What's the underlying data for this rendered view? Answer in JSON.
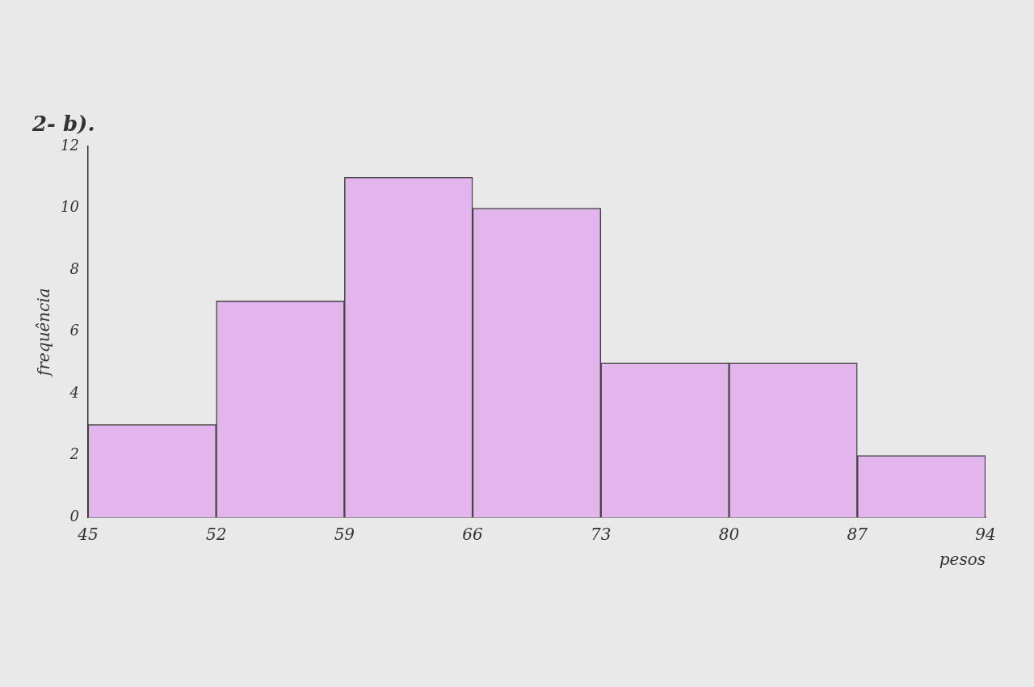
{
  "chart_data": {
    "type": "histogram",
    "title": "2- b).",
    "x_label": "pesos",
    "y_label": "frequência",
    "bins": [
      45,
      52,
      59,
      66,
      73,
      80,
      87,
      94
    ],
    "values": [
      3,
      7,
      11,
      10,
      5,
      5,
      2
    ],
    "color": "#e2b6ec",
    "xlim": [
      45,
      94
    ],
    "xticks": [
      45,
      52,
      59,
      66,
      73,
      80,
      87,
      94
    ],
    "ylim": [
      0,
      12
    ],
    "yticks": [
      0,
      2,
      4,
      6,
      8,
      10,
      12
    ],
    "grid": false
  }
}
